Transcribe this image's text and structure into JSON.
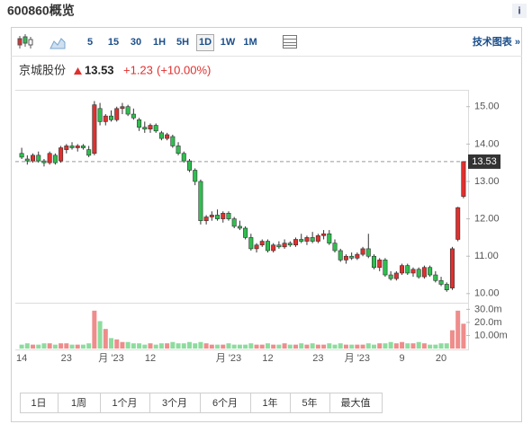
{
  "header": {
    "title": "600860概览",
    "info_icon": "i"
  },
  "toolbar": {
    "intervals": [
      "5",
      "15",
      "30",
      "1H",
      "5H",
      "1D",
      "1W",
      "1M"
    ],
    "selected_interval": "1D",
    "tech_chart_link": "技术图表 »"
  },
  "ranges": [
    "1日",
    "1周",
    "1个月",
    "3个月",
    "6个月",
    "1年",
    "5年",
    "最大值"
  ],
  "chart_data": {
    "type": "candlestick",
    "quote": {
      "name": "京城股份",
      "price": 13.53,
      "change": {
        "value": 1.23,
        "label": "+1.23"
      },
      "change_pct": {
        "value": 10,
        "label": "(+10.00%)"
      }
    },
    "up_color": "#e0302e",
    "down_color": "#2fbf4f",
    "categories": [
      "14",
      null,
      null,
      null,
      null,
      null,
      null,
      null,
      "23",
      null,
      null,
      null,
      null,
      null,
      null,
      null,
      "月 '23",
      null,
      null,
      null,
      null,
      null,
      null,
      "12",
      null,
      null,
      null,
      null,
      null,
      null,
      null,
      null,
      null,
      null,
      null,
      null,
      null,
      "月 '23",
      null,
      null,
      null,
      null,
      null,
      null,
      "12",
      null,
      null,
      null,
      null,
      null,
      null,
      null,
      null,
      "23",
      null,
      null,
      null,
      null,
      null,
      null,
      "月 '23",
      null,
      null,
      null,
      null,
      null,
      null,
      null,
      "9",
      null,
      null,
      null,
      null,
      null,
      null,
      "20",
      null,
      null,
      null,
      null
    ],
    "ohlc": [
      [
        13.75,
        13.9,
        13.6,
        13.65
      ],
      [
        13.6,
        13.7,
        13.45,
        13.55
      ],
      [
        13.55,
        13.75,
        13.5,
        13.7
      ],
      [
        13.7,
        13.8,
        13.5,
        13.55
      ],
      [
        13.55,
        13.6,
        13.4,
        13.5
      ],
      [
        13.5,
        13.8,
        13.45,
        13.75
      ],
      [
        13.7,
        13.75,
        13.45,
        13.5
      ],
      [
        13.55,
        13.95,
        13.5,
        13.9
      ],
      [
        13.85,
        14.0,
        13.75,
        13.95
      ],
      [
        13.95,
        14.05,
        13.85,
        13.9
      ],
      [
        13.9,
        14.0,
        13.8,
        13.95
      ],
      [
        13.95,
        14.0,
        13.85,
        13.9
      ],
      [
        13.85,
        13.95,
        13.65,
        13.7
      ],
      [
        13.75,
        15.15,
        13.7,
        15.05
      ],
      [
        14.95,
        15.1,
        14.5,
        14.6
      ],
      [
        14.6,
        14.8,
        14.5,
        14.75
      ],
      [
        14.75,
        14.9,
        14.6,
        14.65
      ],
      [
        14.65,
        15.0,
        14.6,
        14.95
      ],
      [
        14.95,
        15.1,
        14.8,
        15.0
      ],
      [
        15.0,
        15.05,
        14.75,
        14.8
      ],
      [
        14.8,
        14.95,
        14.65,
        14.7
      ],
      [
        14.65,
        14.7,
        14.35,
        14.45
      ],
      [
        14.45,
        14.6,
        14.3,
        14.4
      ],
      [
        14.4,
        14.55,
        14.3,
        14.5
      ],
      [
        14.5,
        14.55,
        14.3,
        14.35
      ],
      [
        14.3,
        14.35,
        14.1,
        14.15
      ],
      [
        14.15,
        14.3,
        14.1,
        14.25
      ],
      [
        14.2,
        14.25,
        13.9,
        13.95
      ],
      [
        13.95,
        14.05,
        13.7,
        13.75
      ],
      [
        13.75,
        13.8,
        13.5,
        13.55
      ],
      [
        13.55,
        13.6,
        13.25,
        13.3
      ],
      [
        13.3,
        13.35,
        12.9,
        13.0
      ],
      [
        13.0,
        13.05,
        11.85,
        11.95
      ],
      [
        11.95,
        12.1,
        11.85,
        12.05
      ],
      [
        12.05,
        12.2,
        11.95,
        12.1
      ],
      [
        12.1,
        12.25,
        11.95,
        12.0
      ],
      [
        12.0,
        12.2,
        11.9,
        12.15
      ],
      [
        12.15,
        12.2,
        11.95,
        12.0
      ],
      [
        12.0,
        12.05,
        11.75,
        11.8
      ],
      [
        11.8,
        11.95,
        11.7,
        11.75
      ],
      [
        11.75,
        11.8,
        11.45,
        11.5
      ],
      [
        11.5,
        11.6,
        11.15,
        11.2
      ],
      [
        11.2,
        11.35,
        11.1,
        11.3
      ],
      [
        11.3,
        11.45,
        11.25,
        11.4
      ],
      [
        11.4,
        11.45,
        11.1,
        11.15
      ],
      [
        11.15,
        11.35,
        11.1,
        11.3
      ],
      [
        11.3,
        11.4,
        11.2,
        11.25
      ],
      [
        11.25,
        11.45,
        11.2,
        11.35
      ],
      [
        11.35,
        11.4,
        11.25,
        11.3
      ],
      [
        11.3,
        11.5,
        11.25,
        11.45
      ],
      [
        11.45,
        11.6,
        11.35,
        11.4
      ],
      [
        11.4,
        11.55,
        11.3,
        11.5
      ],
      [
        11.5,
        11.65,
        11.35,
        11.4
      ],
      [
        11.4,
        11.6,
        11.35,
        11.55
      ],
      [
        11.55,
        11.7,
        11.45,
        11.6
      ],
      [
        11.6,
        11.7,
        11.3,
        11.35
      ],
      [
        11.35,
        11.45,
        11.1,
        11.15
      ],
      [
        11.15,
        11.2,
        10.85,
        10.9
      ],
      [
        10.9,
        11.05,
        10.8,
        11.0
      ],
      [
        11.0,
        11.1,
        10.9,
        10.95
      ],
      [
        10.95,
        11.1,
        10.9,
        11.05
      ],
      [
        11.05,
        11.25,
        11.0,
        11.2
      ],
      [
        11.2,
        11.6,
        10.95,
        11.0
      ],
      [
        11.0,
        11.05,
        10.65,
        10.7
      ],
      [
        10.7,
        10.95,
        10.6,
        10.9
      ],
      [
        10.9,
        10.95,
        10.45,
        10.5
      ],
      [
        10.5,
        10.6,
        10.35,
        10.4
      ],
      [
        10.4,
        10.6,
        10.35,
        10.55
      ],
      [
        10.55,
        10.8,
        10.5,
        10.75
      ],
      [
        10.75,
        10.8,
        10.5,
        10.55
      ],
      [
        10.55,
        10.7,
        10.45,
        10.65
      ],
      [
        10.65,
        10.7,
        10.4,
        10.45
      ],
      [
        10.45,
        10.75,
        10.4,
        10.7
      ],
      [
        10.7,
        10.75,
        10.45,
        10.5
      ],
      [
        10.5,
        10.6,
        10.3,
        10.35
      ],
      [
        10.35,
        10.45,
        10.2,
        10.25
      ],
      [
        10.25,
        10.3,
        10.05,
        10.1
      ],
      [
        10.15,
        11.25,
        10.1,
        11.2
      ],
      [
        11.45,
        12.32,
        11.4,
        12.3
      ],
      [
        12.6,
        13.53,
        12.55,
        13.53
      ]
    ],
    "volume": [
      3,
      4,
      3,
      3,
      4,
      4,
      3,
      4,
      4,
      3,
      3,
      3,
      4,
      29,
      21,
      15,
      8,
      7,
      5,
      5,
      4,
      4,
      3,
      4,
      3,
      4,
      4,
      5,
      4,
      4,
      5,
      4,
      5,
      4,
      3,
      3,
      3,
      4,
      3,
      3,
      3,
      4,
      3,
      3,
      4,
      3,
      3,
      4,
      3,
      3,
      4,
      3,
      4,
      3,
      3,
      4,
      3,
      4,
      3,
      3,
      3,
      3,
      4,
      3,
      4,
      4,
      5,
      4,
      5,
      4,
      4,
      5,
      4,
      3,
      3,
      4,
      4,
      14,
      29,
      19
    ],
    "ylim": [
      9.78,
      15.45
    ],
    "yticks": [
      {
        "value": 10,
        "label": "10.00"
      },
      {
        "value": 11,
        "label": "11.00"
      },
      {
        "value": 12,
        "label": "12.00"
      },
      {
        "value": 13,
        "label": "13.00"
      },
      {
        "value": 14,
        "label": "14.00"
      },
      {
        "value": 15,
        "label": "15.00"
      }
    ],
    "volume_ylim": [
      0,
      33
    ],
    "volume_ticks": [
      {
        "value": 10,
        "label": "10.00m"
      },
      {
        "value": 20,
        "label": "20.0m"
      },
      {
        "value": 30,
        "label": "30.0m"
      }
    ]
  }
}
